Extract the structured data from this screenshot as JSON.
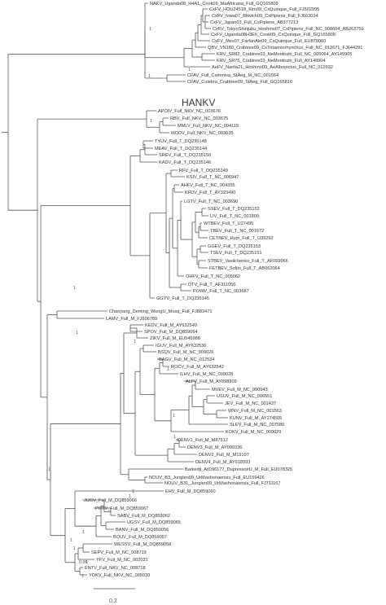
{
  "highlight_label": "HANKV",
  "scale_bar_label": "0.2",
  "leaves": [
    "NAKV_Uganda08_H4A1_Cook09_MaAfricana_Full_GQ165809",
    "CxFV_HOU24518_Kim09_CxQuinque_Full_FJ502995",
    "CxFV_Iowa07_Blitvich09_CxPipiens_Full_FJ663034",
    "CxFV_Japan03_Full_CxPipiens_AB377213",
    "CxFV_TokyoShinjuku_Hoshino07_CxPipiens_Full_NC_008604_AB262759",
    "CxFV_Uganda08H3E6_Cook09_CxQuinque_Full_GQ165808",
    "CxFV_Mex07_FarfanAle09_CxQuinque_Full_EU879060",
    "QBV_VN180_Crabtree09_CxTritaeniorhynchus_Full_NC_012671_FJ644291",
    "KRV_SR82_Crabtree03_NeMontoshi_Full_NC_005064_AY149905",
    "KRV_SR75_Crabtree03_NeMontoshi_Full_AY149904",
    "AeFV_Narita21_Hoshino09_AeAlbopictus_Full_NC_012932",
    "CFAV_Full_Cammisa_StAeg_M_NC_001564",
    "CFAV_Culebra_Crabtree09_StAeg_Full_GQ165810",
    "APOIV_Full_NKV_NC_003676",
    "RBV_Full_NKV_NC_003675",
    "MMLV_Full_NKV_NC_004119",
    "MODV_Full_NKV_NC_003635",
    "TYUV_Full_T_DQ235148",
    "MEAV_Full_T_DQ235144",
    "SREV_Full_T_DQ235150",
    "KADV_Full_T_DQ235146",
    "RFV_Full_T_DQ235149",
    "KSIV_Full_T_NC_006947",
    "AHFV_Full_T_NC_004355",
    "KFDV_Full_T_AY323490",
    "LGTV_Full_T_NC_003690",
    "SSEV_Full_T_DQ235152",
    "LIV_Full_T_NC_001809",
    "WTBEV_Full_T_U27495",
    "TBEV_Full_T_NC_001672",
    "CETBEV_Hypr_Full_T_U39292",
    "GGEV_Full_T_DQ235153",
    "TSEV_Full_T_DQ235151",
    "STBEV_Vasilchenko_Full_T_AF069066",
    "FETBEV_Sofjin_Full_T_AB062064",
    "OHFV_Full_T_NC_005062",
    "DTV_Full_T_AF311056",
    "POWV_Full_T_NC_003687",
    "GGYV_Full_T_DQ235145",
    "Chaoyang_Deming_WongU_Mosq_Full_FJ883471",
    "LAMV_Full_M_FJ606789",
    "KEDV_Full_M_AY632540",
    "SPOV_Full_M_DQ859064",
    "ZIKV_Full_M_EU545988",
    "IGUV_Full_M_AY632536",
    "BSQV_Full_M_NC_009026",
    "BAGV_Full_M_NC_012534",
    "ROCV_Full_M_AY632542",
    "ILHV_Full_M_NC_009028",
    "ALFV_Full_M_AY898809",
    "MVEV_Full_M_NC_000943",
    "USUV_Full_M_NC_006551",
    "JEV_Full_M_NC_001437",
    "WNV_Full_M_NC_001563",
    "KUNV_Full_M_AY274505",
    "SLEV_Full_M_NC_007580",
    "KOKV_Full_M_NC_009029",
    "DENV1_Full_M_M87512",
    "DENV3_Full_M_AY099336",
    "DENV2_Full_M_M19197",
    "DENV4_Full_M_AY618993",
    "Barkedji_ArD96177_DupressoirU_M_Full_EU078325",
    "NOUV_B3_Junglen09_UrMashonaensis_Full_EU159426",
    "NOUV_B31_Junglen09_UrMashonaensis_Full_FJ711167",
    "EHV_Full_M_DQ859060",
    "JUGV_Full_M_DQ859066",
    "POTV_Full_M_DQ859067",
    "SABV_Full_M_DQ859062",
    "UGSV_Full_M_DQ859065",
    "BANV_Full_M_DQ859056",
    "BOUV_Full_M_DQ859057",
    "WESSV_Full_M_DQ859058",
    "SEPV_Full_M_NC_008719",
    "YFV_Full_M_NC_002031",
    "ENTV_Full_NKV_NC_008718",
    "YOKV_Full_NKV_NC_005039"
  ]
}
